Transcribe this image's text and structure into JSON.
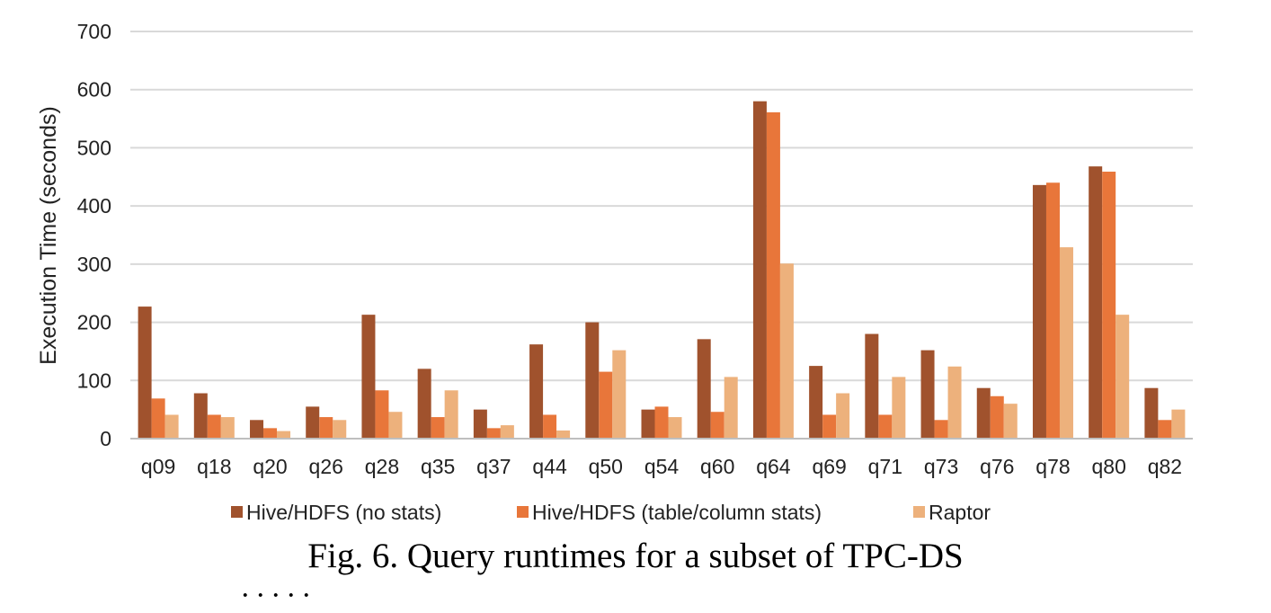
{
  "chart_data": {
    "type": "bar",
    "ylabel": "Execution Time (seconds)",
    "xlabel": "",
    "ylim": [
      0,
      700
    ],
    "yticks": [
      0,
      100,
      200,
      300,
      400,
      500,
      600,
      700
    ],
    "grid": true,
    "legend_position": "bottom",
    "categories": [
      "q09",
      "q18",
      "q20",
      "q26",
      "q28",
      "q35",
      "q37",
      "q44",
      "q50",
      "q54",
      "q60",
      "q64",
      "q69",
      "q71",
      "q73",
      "q76",
      "q78",
      "q80",
      "q82"
    ],
    "series": [
      {
        "name": "Hive/HDFS (no stats)",
        "color": "#A0522D",
        "values": [
          227,
          78,
          32,
          55,
          213,
          120,
          50,
          162,
          200,
          50,
          171,
          580,
          125,
          180,
          152,
          87,
          436,
          468,
          87
        ]
      },
      {
        "name": "Hive/HDFS (table/column stats)",
        "color": "#E8763A",
        "values": [
          69,
          41,
          18,
          37,
          83,
          37,
          18,
          41,
          115,
          55,
          46,
          561,
          41,
          41,
          32,
          73,
          440,
          459,
          32
        ]
      },
      {
        "name": "Raptor",
        "color": "#EDB17C",
        "values": [
          41,
          37,
          13,
          32,
          46,
          83,
          23,
          14,
          152,
          37,
          106,
          301,
          78,
          106,
          124,
          60,
          329,
          213,
          50
        ]
      }
    ]
  },
  "caption": "Fig. 6.   Query runtimes for a subset of TPC-DS",
  "cut_off_text": "· · · · ·"
}
